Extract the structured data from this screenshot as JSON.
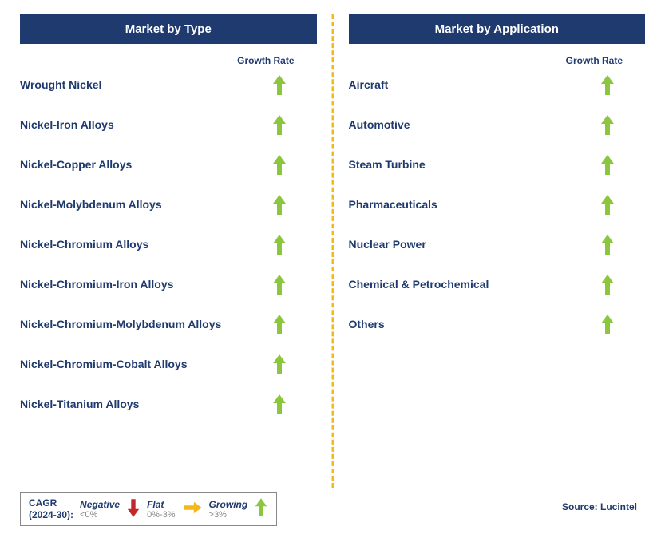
{
  "colors": {
    "header_bg": "#1f3a6e",
    "header_text": "#ffffff",
    "label_text": "#1f3a6e",
    "arrow_up": "#8cc63f",
    "arrow_down": "#c1272d",
    "arrow_flat": "#f5b916",
    "divider": "#f5b916",
    "legend_border": "#888888",
    "legend_gray": "#888888",
    "background": "#ffffff"
  },
  "typography": {
    "header_fontsize": 15,
    "label_fontsize": 14,
    "growth_label_fontsize": 12,
    "legend_fontsize": 12,
    "source_fontsize": 12
  },
  "left_panel": {
    "title": "Market by Type",
    "growth_label": "Growth Rate",
    "items": [
      {
        "label": "Wrought Nickel",
        "growth": "up"
      },
      {
        "label": "Nickel-Iron Alloys",
        "growth": "up"
      },
      {
        "label": "Nickel-Copper Alloys",
        "growth": "up"
      },
      {
        "label": "Nickel-Molybdenum Alloys",
        "growth": "up"
      },
      {
        "label": "Nickel-Chromium Alloys",
        "growth": "up"
      },
      {
        "label": "Nickel-Chromium-Iron Alloys",
        "growth": "up"
      },
      {
        "label": "Nickel-Chromium-Molybdenum Alloys",
        "growth": "up"
      },
      {
        "label": "Nickel-Chromium-Cobalt Alloys",
        "growth": "up"
      },
      {
        "label": "Nickel-Titanium Alloys",
        "growth": "up"
      }
    ]
  },
  "right_panel": {
    "title": "Market by Application",
    "growth_label": "Growth Rate",
    "items": [
      {
        "label": "Aircraft",
        "growth": "up"
      },
      {
        "label": "Automotive",
        "growth": "up"
      },
      {
        "label": "Steam Turbine",
        "growth": "up"
      },
      {
        "label": "Pharmaceuticals",
        "growth": "up"
      },
      {
        "label": "Nuclear Power",
        "growth": "up"
      },
      {
        "label": "Chemical & Petrochemical",
        "growth": "up"
      },
      {
        "label": "Others",
        "growth": "up"
      }
    ]
  },
  "legend": {
    "title_line1": "CAGR",
    "title_line2": "(2024-30):",
    "negative": {
      "word": "Negative",
      "val": "<0%"
    },
    "flat": {
      "word": "Flat",
      "val": "0%-3%"
    },
    "growing": {
      "word": "Growing",
      "val": ">3%"
    }
  },
  "source": "Source: Lucintel"
}
